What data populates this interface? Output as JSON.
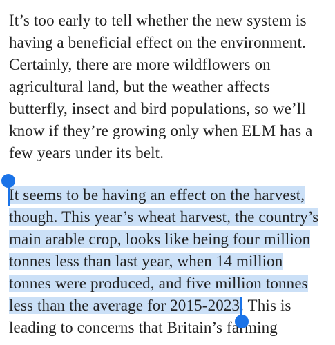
{
  "paragraphs": [
    {
      "lines": [
        "It’s too early to tell whether the new system is",
        "having a beneficial effect on the environment.",
        "Certainly, there are more wildflowers on",
        "agricultural land, but the weather affects",
        "butterfly, insect and bird populations, so we’ll",
        "know if they’re growing only when ELM has a",
        "few years under its belt."
      ]
    },
    {
      "selected_lines": [
        "It seems to be having an effect on the harvest,",
        "though. This year’s wheat harvest, the country’s",
        "main arable crop, looks like being four million",
        "tonnes less than last year, when 14 million",
        "tonnes were produced, and five million tonnes",
        "less than the average for 2015-2023"
      ],
      "unselected_lines": [
        ". This is",
        "leading to concerns that Britain’s farming"
      ]
    }
  ]
}
